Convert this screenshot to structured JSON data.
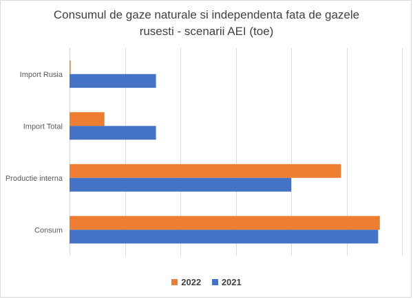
{
  "chart_data": {
    "type": "bar",
    "orientation": "horizontal",
    "title_line1": "Consumul de gaze naturale si independenta fata de gazele",
    "title_line2": "rusesti - scenarii AEI (toe)",
    "categories": [
      "Consum",
      "Productie interna",
      "Import Total",
      "Import Rusia"
    ],
    "series": [
      {
        "name": "2022",
        "color": "#ED7D31",
        "values": [
          56,
          49,
          6.3,
          0.2
        ]
      },
      {
        "name": "2021",
        "color": "#4472C4",
        "values": [
          55.7,
          40,
          15.6,
          15.6
        ]
      }
    ],
    "xlim": [
      0,
      60
    ],
    "grid_step": 10,
    "grid": true,
    "x_tick_labels": false,
    "legend_position": "bottom"
  }
}
